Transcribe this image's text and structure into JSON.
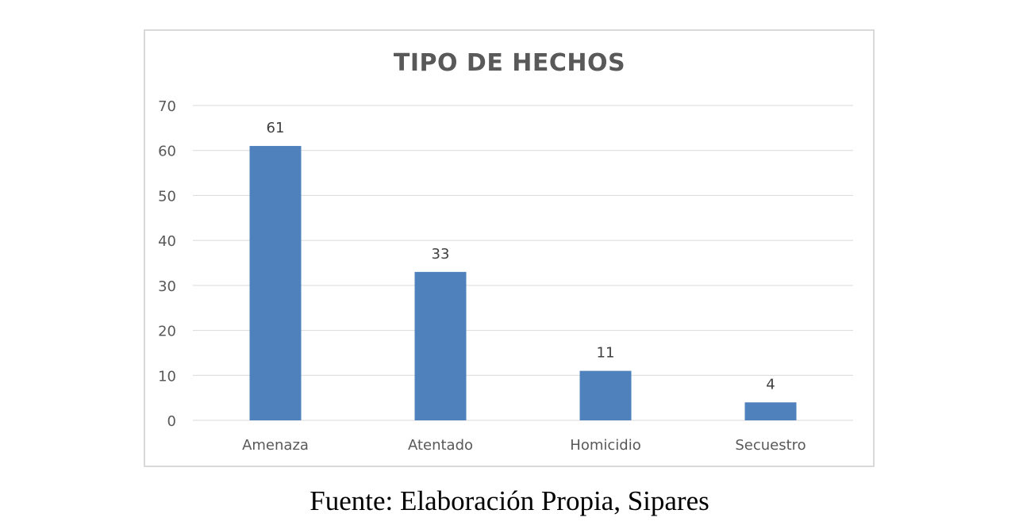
{
  "caption": "Fuente: Elaboración Propia, Sipares",
  "colors": {
    "bar": "#4f81bd",
    "gridline": "#d9d9d9",
    "axis_text": "#595959",
    "title": "#595959",
    "frame": "#d9d9d9"
  },
  "chart_data": {
    "type": "bar",
    "title": "TIPO DE HECHOS",
    "xlabel": "",
    "ylabel": "",
    "categories": [
      "Amenaza",
      "Atentado",
      "Homicidio",
      "Secuestro"
    ],
    "values": [
      61,
      33,
      11,
      4
    ],
    "data_labels": [
      "61",
      "33",
      "11",
      "4"
    ],
    "ylim": [
      0,
      70
    ],
    "yticks": [
      0,
      10,
      20,
      30,
      40,
      50,
      60,
      70
    ],
    "ytick_labels": [
      "0",
      "10",
      "20",
      "30",
      "40",
      "50",
      "60",
      "70"
    ],
    "grid": true,
    "legend": "none"
  }
}
